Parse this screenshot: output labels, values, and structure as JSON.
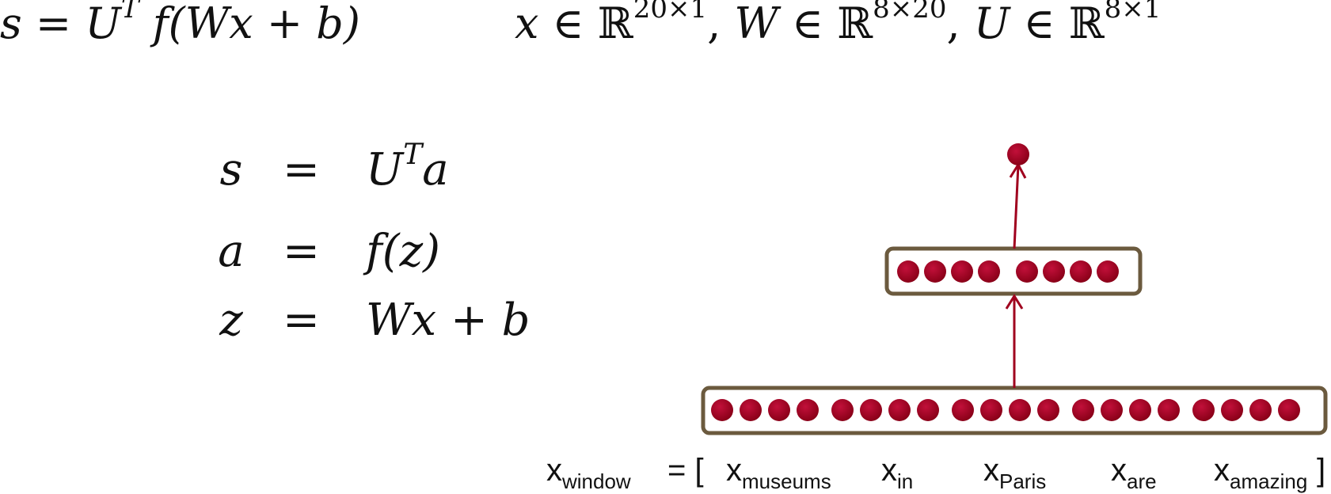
{
  "top_formula": {
    "score_fn": {
      "lhs": "s",
      "eq": "=",
      "U": "U",
      "T": "T",
      "rest": "f(Wx + b)"
    },
    "dims": {
      "x": "x",
      "in1": "∈",
      "R1": "ℝ",
      "xdim": "20×1",
      "W": "W",
      "in2": "∈",
      "R2": "ℝ",
      "wdim": "8×20",
      "U": "U",
      "in3": "∈",
      "R3": "ℝ",
      "udim": "8×1"
    }
  },
  "equations": [
    {
      "lhs": "s",
      "eq": "=",
      "rhs": "U",
      "sup": "T",
      "rhs_tail": "a"
    },
    {
      "lhs": "a",
      "eq": "=",
      "rhs": "f(z)",
      "sup": "",
      "rhs_tail": ""
    },
    {
      "lhs": "z",
      "eq": "=",
      "rhs": "Wx + b",
      "sup": "",
      "rhs_tail": ""
    }
  ],
  "network": {
    "input_groups": 5,
    "units_per_group": 4,
    "hidden_units": 8,
    "output_units": 1,
    "node_color": "#a0001e",
    "box_color": "#6b5a3e",
    "arrow_color": "#a0001e"
  },
  "window_label": {
    "prefix": "x",
    "prefix_sub": "window",
    "eq": "= [",
    "close": "]",
    "words": [
      {
        "x": "x",
        "sub": "museums"
      },
      {
        "x": "x",
        "sub": "in"
      },
      {
        "x": "x",
        "sub": "Paris"
      },
      {
        "x": "x",
        "sub": "are"
      },
      {
        "x": "x",
        "sub": "amazing"
      }
    ]
  }
}
